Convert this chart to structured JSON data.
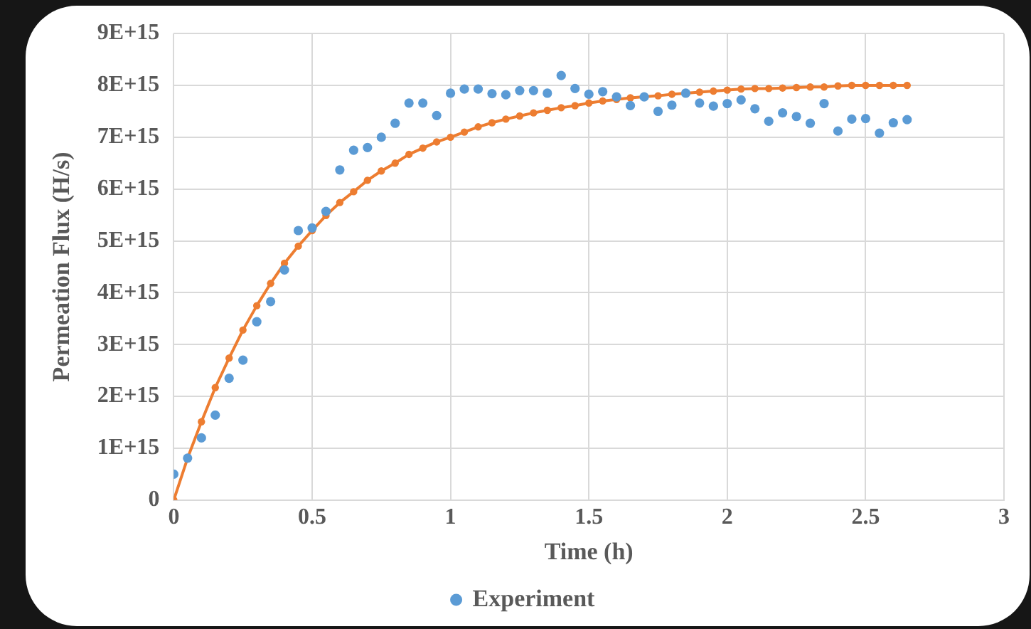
{
  "chart_data": {
    "type": "scatter",
    "xlabel": "Time (h)",
    "ylabel": "Permeation Flux (H/s)",
    "x": [
      0,
      0.05,
      0.1,
      0.15,
      0.2,
      0.25,
      0.3,
      0.35,
      0.4,
      0.45,
      0.5,
      0.55,
      0.6,
      0.65,
      0.7,
      0.75,
      0.8,
      0.85,
      0.9,
      0.95,
      1.0,
      1.05,
      1.1,
      1.15,
      1.2,
      1.25,
      1.3,
      1.35,
      1.4,
      1.45,
      1.5,
      1.55,
      1.6,
      1.65,
      1.7,
      1.75,
      1.8,
      1.85,
      1.9,
      1.95,
      2.0,
      2.05,
      2.1,
      2.15,
      2.2,
      2.25,
      2.3,
      2.35,
      2.4,
      2.45,
      2.5,
      2.55,
      2.6,
      2.65
    ],
    "series": [
      {
        "name": "Experiment",
        "type": "scatter",
        "color": "#5b9bd5",
        "marker": "circle",
        "values": [
          500000000000000.0,
          810000000000000.0,
          1200000000000000.0,
          1640000000000000.0,
          2350000000000000.0,
          2700000000000000.0,
          3440000000000000.0,
          3830000000000000.0,
          4440000000000000.0,
          5200000000000000.0,
          5250000000000000.0,
          5570000000000000.0,
          6370000000000000.0,
          6750000000000000.0,
          6800000000000000.0,
          7000000000000000.0,
          7270000000000000.0,
          7660000000000000.0,
          7660000000000000.0,
          7420000000000000.0,
          7850000000000000.0,
          7930000000000000.0,
          7930000000000000.0,
          7840000000000000.0,
          7820000000000000.0,
          7900000000000000.0,
          7900000000000000.0,
          7850000000000000.0,
          8190000000000000.0,
          7940000000000000.0,
          7830000000000000.0,
          7880000000000000.0,
          7780000000000000.0,
          7610000000000000.0,
          7780000000000000.0,
          7500000000000000.0,
          7620000000000000.0,
          7850000000000000.0,
          7660000000000000.0,
          7600000000000000.0,
          7650000000000000.0,
          7720000000000000.0,
          7550000000000000.0,
          7310000000000000.0,
          7470000000000000.0,
          7400000000000000.0,
          7270000000000000.0,
          7650000000000000.0,
          7120000000000000.0,
          7350000000000000.0,
          7360000000000000.0,
          7080000000000000.0,
          7280000000000000.0,
          7340000000000000.0
        ]
      },
      {
        "type": "line",
        "color": "#ed7d31",
        "marker": "circle",
        "line_style": "solid",
        "values": [
          0,
          810000000000000.0,
          1510000000000000.0,
          2170000000000000.0,
          2740000000000000.0,
          3280000000000000.0,
          3750000000000000.0,
          4180000000000000.0,
          4570000000000000.0,
          4900000000000000.0,
          5200000000000000.0,
          5490000000000000.0,
          5740000000000000.0,
          5950000000000000.0,
          6170000000000000.0,
          6350000000000000.0,
          6500000000000000.0,
          6670000000000000.0,
          6790000000000000.0,
          6910000000000000.0,
          7000000000000000.0,
          7100000000000000.0,
          7200000000000000.0,
          7280000000000000.0,
          7350000000000000.0,
          7410000000000000.0,
          7470000000000000.0,
          7520000000000000.0,
          7570000000000000.0,
          7610000000000000.0,
          7660000000000000.0,
          7700000000000000.0,
          7730000000000000.0,
          7760000000000000.0,
          7780000000000000.0,
          7800000000000000.0,
          7830000000000000.0,
          7850000000000000.0,
          7870000000000000.0,
          7890000000000000.0,
          7910000000000000.0,
          7930000000000000.0,
          7940000000000000.0,
          7940000000000000.0,
          7950000000000000.0,
          7960000000000000.0,
          7970000000000000.0,
          7970000000000000.0,
          7990000000000000.0,
          8000000000000000.0,
          8000000000000000.0,
          8000000000000000.0,
          8000000000000000.0,
          8000000000000000.0
        ]
      }
    ],
    "xlim": [
      0,
      3
    ],
    "xticks": [
      0,
      0.5,
      1,
      1.5,
      2,
      2.5,
      3
    ],
    "ylim": [
      0,
      9000000000000000.0
    ],
    "yticks": [
      0,
      {
        "value": 1000000000000000.0,
        "label": "1E+15"
      },
      {
        "value": 2000000000000000.0,
        "label": "2E+15"
      },
      {
        "value": 3000000000000000.0,
        "label": "3E+15"
      },
      {
        "value": 4000000000000000.0,
        "label": "4E+15"
      },
      {
        "value": 5000000000000000.0,
        "label": "5E+15"
      },
      {
        "value": 6000000000000000.0,
        "label": "6E+15"
      },
      {
        "value": 7000000000000000.0,
        "label": "7E+15"
      },
      {
        "value": 8000000000000000.0,
        "label": "8E+15"
      },
      {
        "value": 9000000000000000.0,
        "label": "9E+15"
      }
    ],
    "grid": true,
    "legend": "bottom"
  }
}
